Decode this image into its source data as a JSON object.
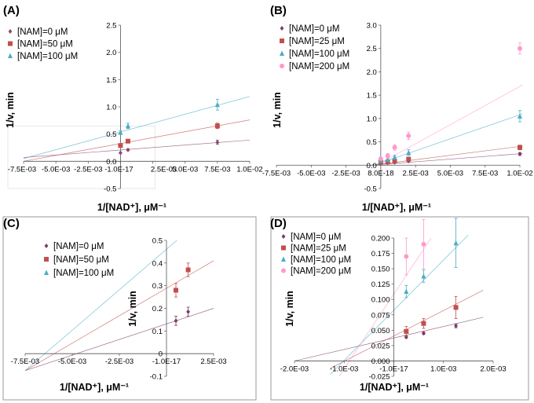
{
  "chart_data": [
    {
      "panel": "(A)",
      "type": "scatter",
      "xlabel": "1/[NAD⁺], μM⁻¹",
      "ylabel": "1/v, min",
      "xlim": [
        -0.0075,
        0.01
      ],
      "ylim": [
        -0.5,
        2.5
      ],
      "x_ticks": [
        "-7.5E-03",
        "-5.0E-03",
        "-2.5E-03",
        "-1.0E-17",
        "2.5E-03",
        "5.0E-03",
        "7.5E-03",
        "1.0E-02"
      ],
      "y_ticks": [
        "-0.5",
        "0.0",
        "0.5",
        "1.0",
        "1.5",
        "2.0",
        "2.5"
      ],
      "legend_position": "top-left",
      "series": [
        {
          "name": "[NAM]=0 μM",
          "color": "#8a4a70",
          "marker": "diamond",
          "x": [
            0.0,
            0.00058,
            0.0075
          ],
          "y": [
            0.155,
            0.21,
            0.35
          ],
          "err": [
            0.01,
            0.015,
            0.04
          ],
          "fit": {
            "x": [
              -0.0075,
              0.01
            ],
            "y": [
              0.07,
              0.39
            ]
          }
        },
        {
          "name": "[NAM]=50 μM",
          "color": "#c0504d",
          "marker": "square",
          "x": [
            0.0,
            0.00058,
            0.0075
          ],
          "y": [
            0.29,
            0.37,
            0.65
          ],
          "err": [
            0.02,
            0.02,
            0.05
          ],
          "fit": {
            "x": [
              -0.0075,
              0.01
            ],
            "y": [
              0.0,
              0.76
            ]
          }
        },
        {
          "name": "[NAM]=100 μM",
          "color": "#4bacc6",
          "marker": "triangle",
          "x": [
            0.0,
            0.00058,
            0.0075
          ],
          "y": [
            0.53,
            0.65,
            1.04
          ],
          "err": [
            0.03,
            0.05,
            0.1
          ],
          "fit": {
            "x": [
              -0.0075,
              0.01
            ],
            "y": [
              0.05,
              1.19
            ]
          }
        }
      ]
    },
    {
      "panel": "(B)",
      "type": "scatter",
      "xlabel": "1/[NAD⁺], μM⁻¹",
      "ylabel": "1/v, min",
      "xlim": [
        -0.0075,
        0.01
      ],
      "ylim": [
        -0.5,
        3.0
      ],
      "x_ticks": [
        "-7.5E-03",
        "-5.0E-03",
        "-2.5E-03",
        "8.0E-18",
        "2.5E-03",
        "5.0E-03",
        "7.5E-03",
        "1.0E-02"
      ],
      "y_ticks": [
        "-0.5",
        "0.0",
        "0.5",
        "1.0",
        "1.5",
        "2.0",
        "2.5",
        "3.0"
      ],
      "legend_position": "top-left",
      "series": [
        {
          "name": "[NAM]=0 μM",
          "color": "#7a3a6a",
          "marker": "diamond",
          "x": [
            0.0,
            0.0005,
            0.001,
            0.002,
            0.01
          ],
          "y": [
            0.04,
            0.05,
            0.06,
            0.09,
            0.24
          ],
          "err": [
            0.01,
            0.01,
            0.01,
            0.02,
            0.03
          ],
          "fit": {
            "x": [
              -0.0007,
              0.0102
            ],
            "y": [
              0.0,
              0.25
            ]
          }
        },
        {
          "name": "[NAM]=25 μM",
          "color": "#c0504d",
          "marker": "square",
          "x": [
            0.0,
            0.0005,
            0.001,
            0.002,
            0.01
          ],
          "y": [
            0.06,
            0.07,
            0.09,
            0.13,
            0.38
          ],
          "err": [
            0.01,
            0.01,
            0.02,
            0.03,
            0.05
          ],
          "fit": {
            "x": [
              -0.0006,
              0.0102
            ],
            "y": [
              0.0,
              0.41
            ]
          }
        },
        {
          "name": "[NAM]=100 μM",
          "color": "#4bacc6",
          "marker": "triangle",
          "x": [
            0.0,
            0.0005,
            0.001,
            0.002,
            0.01
          ],
          "y": [
            0.1,
            0.12,
            0.17,
            0.27,
            1.05
          ],
          "err": [
            0.02,
            0.03,
            0.04,
            0.06,
            0.12
          ],
          "fit": {
            "x": [
              -0.0005,
              0.0102
            ],
            "y": [
              0.0,
              1.1
            ]
          }
        },
        {
          "name": "[NAM]=200 μM",
          "color": "#ff99cc",
          "marker": "circle",
          "x": [
            0.0,
            0.0005,
            0.001,
            0.002,
            0.01
          ],
          "y": [
            0.14,
            0.2,
            0.38,
            0.63,
            2.5
          ],
          "err": [
            0.03,
            0.05,
            0.06,
            0.08,
            0.12
          ],
          "fit": {
            "x": [
              -0.0003,
              0.0102
            ],
            "y": [
              0.0,
              1.72
            ]
          }
        }
      ]
    },
    {
      "panel": "(C)",
      "type": "scatter",
      "xlabel": "1/[NAD⁺], μM⁻¹",
      "ylabel": "1/v, min",
      "xlim": [
        -0.0075,
        0.0025
      ],
      "ylim": [
        -0.1,
        0.5
      ],
      "x_ticks": [
        "-7.5E-03",
        "-5.0E-03",
        "-2.5E-03",
        "-1.0E-17",
        "2.5E-03"
      ],
      "y_ticks": [
        "-0.1",
        "0",
        "0.1",
        "0.2",
        "0.3",
        "0.4",
        "0.5"
      ],
      "legend_position": "top-left",
      "series": [
        {
          "name": "[NAM]=0  μM",
          "color": "#7a3a6a",
          "marker": "diamond",
          "x": [
            0.0005,
            0.00115
          ],
          "y": [
            0.145,
            0.185
          ],
          "err": [
            0.02,
            0.02
          ],
          "fit": {
            "x": [
              -0.0075,
              0.0025
            ],
            "y": [
              -0.075,
              0.2
            ]
          }
        },
        {
          "name": "[NAM]=50  μM",
          "color": "#c0504d",
          "marker": "square",
          "x": [
            0.0005,
            0.00115
          ],
          "y": [
            0.28,
            0.37
          ],
          "err": [
            0.03,
            0.03
          ],
          "fit": {
            "x": [
              -0.0075,
              0.0025
            ],
            "y": [
              -0.075,
              0.41
            ]
          }
        },
        {
          "name": "[NAM]=100  μM",
          "color": "#4bacc6",
          "marker": "triangle",
          "x": [],
          "y": [],
          "err": [],
          "fit": {
            "x": [
              -0.0075,
              0.00055
            ],
            "y": [
              -0.075,
              0.5
            ]
          }
        }
      ]
    },
    {
      "panel": "(D)",
      "type": "scatter",
      "xlabel": "1/[NAD⁺], μM⁻¹",
      "ylabel": "1/v, min",
      "xlim": [
        -0.002,
        0.002
      ],
      "ylim": [
        -0.025,
        0.2
      ],
      "x_ticks": [
        "-2.0E-03",
        "-1.0E-03",
        "-1.0E-17",
        "1.0E-03",
        "2.0E-03"
      ],
      "y_ticks": [
        "-0.025",
        "0.000",
        "0.025",
        "0.050",
        "0.075",
        "0.100",
        "0.125",
        "0.150",
        "0.175",
        "0.200"
      ],
      "legend_position": "top-left",
      "series": [
        {
          "name": "[NAM]=0  μM",
          "color": "#7a3a6a",
          "marker": "diamond",
          "x": [
            0.00025,
            0.0006,
            0.00125
          ],
          "y": [
            0.039,
            0.045,
            0.057
          ],
          "err": [
            0.002,
            0.002,
            0.003
          ],
          "fit": {
            "x": [
              -0.002,
              0.0018
            ],
            "y": [
              0.0,
              0.071
            ]
          }
        },
        {
          "name": "[NAM]=25  μM",
          "color": "#c0504d",
          "marker": "square",
          "x": [
            0.00025,
            0.0006,
            0.00125
          ],
          "y": [
            0.048,
            0.061,
            0.087
          ],
          "err": [
            0.008,
            0.008,
            0.018
          ],
          "fit": {
            "x": [
              -0.00128,
              0.0018
            ],
            "y": [
              -0.012,
              0.115
            ]
          }
        },
        {
          "name": "[NAM]=100  μM",
          "color": "#4bacc6",
          "marker": "triangle",
          "x": [
            0.00025,
            0.0006,
            0.00125
          ],
          "y": [
            0.113,
            0.138,
            0.192
          ],
          "err": [
            0.01,
            0.01,
            0.04
          ],
          "fit": {
            "x": [
              -0.00128,
              0.0015
            ],
            "y": [
              -0.022,
              0.205
            ]
          }
        },
        {
          "name": "[NAM]=200  μM",
          "color": "#ff99cc",
          "marker": "circle",
          "x": [
            0.00025,
            0.0006
          ],
          "y": [
            0.17,
            0.19
          ],
          "err": [
            0.03,
            0.04
          ],
          "fit": {
            "x": [
              -0.0011,
              0.00075
            ],
            "y": [
              -0.025,
              0.2
            ]
          }
        }
      ]
    }
  ]
}
